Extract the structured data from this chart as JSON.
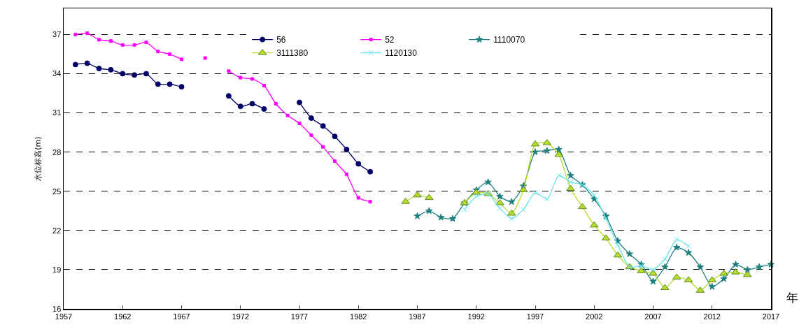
{
  "chart_data": {
    "type": "line",
    "xlabel": "年",
    "ylabel": "水位标高(m)",
    "x": [
      1958,
      1959,
      1960,
      1961,
      1962,
      1963,
      1964,
      1965,
      1966,
      1967,
      1968,
      1969,
      1970,
      1971,
      1972,
      1973,
      1974,
      1975,
      1976,
      1977,
      1978,
      1979,
      1980,
      1981,
      1982,
      1983,
      1984,
      1985,
      1986,
      1987,
      1988,
      1989,
      1990,
      1991,
      1992,
      1993,
      1994,
      1995,
      1996,
      1997,
      1998,
      1999,
      2000,
      2001,
      2002,
      2003,
      2004,
      2005,
      2006,
      2007,
      2008,
      2009,
      2010,
      2011,
      2012,
      2013,
      2014,
      2015,
      2016,
      2017
    ],
    "series": [
      {
        "name": "56",
        "color": "#000066",
        "marker": "circle",
        "values": [
          34.7,
          34.8,
          34.4,
          34.3,
          34.0,
          33.9,
          34.0,
          33.2,
          33.2,
          33.0,
          null,
          null,
          null,
          32.3,
          31.5,
          31.7,
          31.3,
          null,
          null,
          31.8,
          30.6,
          30.0,
          29.2,
          28.2,
          27.1,
          26.5,
          null,
          null,
          null,
          null,
          null,
          null,
          null,
          null,
          null,
          null,
          null,
          null,
          null,
          null,
          null,
          null,
          null,
          null,
          null,
          null,
          null,
          null,
          null,
          null,
          null,
          null,
          null,
          null,
          null,
          null,
          null,
          null,
          null,
          null
        ]
      },
      {
        "name": "52",
        "color": "#ff00ff",
        "marker": "square",
        "values": [
          37.0,
          37.1,
          36.6,
          36.5,
          36.2,
          36.2,
          36.4,
          35.7,
          35.5,
          35.1,
          null,
          35.2,
          null,
          34.2,
          33.7,
          33.6,
          33.1,
          31.7,
          30.8,
          30.2,
          29.3,
          28.4,
          27.3,
          26.3,
          24.5,
          24.2,
          null,
          null,
          null,
          null,
          null,
          null,
          null,
          null,
          null,
          null,
          null,
          null,
          null,
          null,
          null,
          null,
          null,
          null,
          null,
          null,
          null,
          null,
          null,
          null,
          null,
          null,
          null,
          null,
          null,
          null,
          null,
          null,
          null,
          null
        ]
      },
      {
        "name": "1110070",
        "color": "#1f7f7f",
        "marker": "star",
        "values": [
          null,
          null,
          null,
          null,
          null,
          null,
          null,
          null,
          null,
          null,
          null,
          null,
          null,
          null,
          null,
          null,
          null,
          null,
          null,
          null,
          null,
          null,
          null,
          null,
          null,
          null,
          null,
          null,
          null,
          23.1,
          23.5,
          23.0,
          22.9,
          24.1,
          25.1,
          25.7,
          24.6,
          24.2,
          25.4,
          28.0,
          28.1,
          28.2,
          26.2,
          25.5,
          24.4,
          23.1,
          21.2,
          20.2,
          19.4,
          18.1,
          19.2,
          20.7,
          20.3,
          19.2,
          17.7,
          18.3,
          19.4,
          19.0,
          19.2,
          19.4
        ]
      },
      {
        "name": "3111380",
        "color": "#b8dc28",
        "marker": "triangle",
        "values": [
          null,
          null,
          null,
          null,
          null,
          null,
          null,
          null,
          null,
          null,
          null,
          null,
          null,
          null,
          null,
          null,
          null,
          null,
          null,
          null,
          null,
          null,
          null,
          null,
          null,
          null,
          null,
          null,
          24.2,
          24.7,
          24.5,
          null,
          null,
          24.1,
          24.9,
          24.8,
          24.1,
          23.3,
          25.1,
          28.6,
          28.7,
          27.8,
          25.2,
          23.8,
          22.4,
          21.4,
          20.1,
          19.2,
          18.9,
          18.7,
          17.6,
          18.4,
          18.2,
          17.4,
          18.2,
          18.7,
          18.8,
          18.6,
          null,
          null
        ]
      },
      {
        "name": "1120130",
        "color": "#66e4ec",
        "marker": "cross",
        "values": [
          null,
          null,
          null,
          null,
          null,
          null,
          null,
          null,
          null,
          null,
          null,
          null,
          null,
          null,
          null,
          null,
          null,
          null,
          null,
          null,
          null,
          null,
          null,
          null,
          null,
          null,
          null,
          null,
          null,
          null,
          null,
          null,
          null,
          23.6,
          24.6,
          24.8,
          23.7,
          22.9,
          23.6,
          24.9,
          24.4,
          26.2,
          25.7,
          25.5,
          24.7,
          22.9,
          20.9,
          19.2,
          19.3,
          19.0,
          19.8,
          21.3,
          20.8,
          null,
          null,
          null,
          null,
          null,
          null,
          null
        ]
      }
    ],
    "xlim": [
      1957,
      2017
    ],
    "xticks": [
      1957,
      1962,
      1967,
      1972,
      1977,
      1982,
      1987,
      1992,
      1997,
      2002,
      2007,
      2012,
      2017
    ],
    "ylim": [
      16,
      39
    ],
    "yticks": [
      16,
      19,
      22,
      25,
      28,
      31,
      34,
      37
    ],
    "grid": "y",
    "legend": "top",
    "line_style": "solid"
  }
}
